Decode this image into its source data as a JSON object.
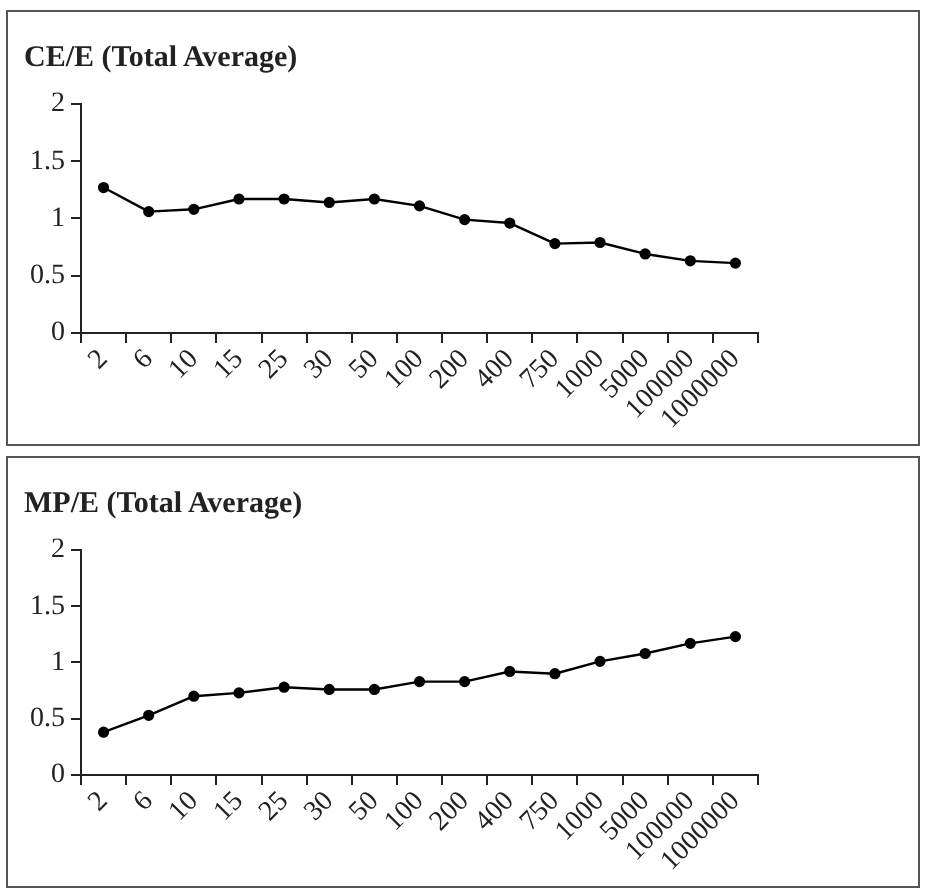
{
  "chart_data": [
    {
      "type": "line",
      "title": "CE/E (Total Average)",
      "categories": [
        "2",
        "6",
        "10",
        "15",
        "25",
        "30",
        "50",
        "100",
        "200",
        "400",
        "750",
        "1000",
        "5000",
        "100000",
        "1000000"
      ],
      "values": [
        1.27,
        1.06,
        1.08,
        1.17,
        1.17,
        1.14,
        1.17,
        1.11,
        0.99,
        0.96,
        0.78,
        0.79,
        0.69,
        0.63,
        0.61
      ],
      "color": "#000000",
      "ylim": [
        0,
        2
      ],
      "yticks": [
        0,
        0.5,
        1,
        1.5,
        2
      ],
      "marker": "circle",
      "grid": false,
      "legend": false
    },
    {
      "type": "line",
      "title": "MP/E (Total Average)",
      "categories": [
        "2",
        "6",
        "10",
        "15",
        "25",
        "30",
        "50",
        "100",
        "200",
        "400",
        "750",
        "1000",
        "5000",
        "100000",
        "1000000"
      ],
      "values": [
        0.38,
        0.53,
        0.7,
        0.73,
        0.78,
        0.76,
        0.76,
        0.83,
        0.83,
        0.92,
        0.9,
        1.01,
        1.08,
        1.17,
        1.23
      ],
      "color": "#000000",
      "ylim": [
        0,
        2
      ],
      "yticks": [
        0,
        0.5,
        1,
        1.5,
        2
      ],
      "marker": "circle",
      "grid": false,
      "legend": false
    }
  ]
}
